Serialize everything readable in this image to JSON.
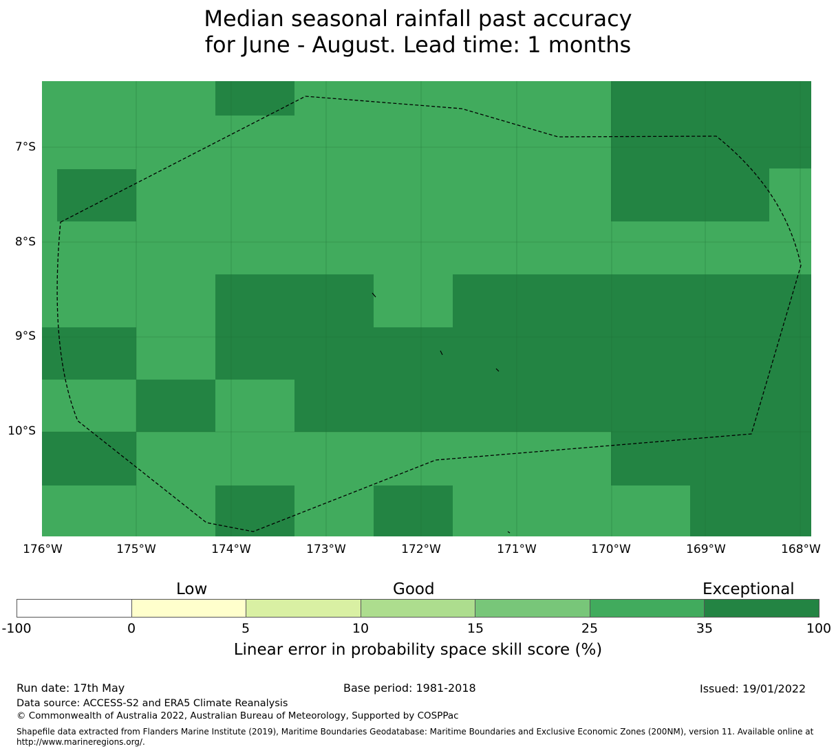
{
  "title": {
    "line1": "Median seasonal rainfall past accuracy",
    "line2": "for June - August. Lead time: 1 months"
  },
  "map": {
    "lat_labels": [
      "7°S",
      "8°S",
      "9°S",
      "10°S"
    ],
    "lon_labels": [
      "176°W",
      "175°W",
      "174°W",
      "173°W",
      "172°W",
      "171°W",
      "170°W",
      "169°W",
      "168°W"
    ],
    "colors": {
      "good": "#41ab5d",
      "exceptional": "#238443",
      "boundary": "#000000"
    }
  },
  "colorbar": {
    "categories": [
      "Low",
      "Good",
      "Exceptional"
    ],
    "ticks": [
      "-100",
      "0",
      "5",
      "10",
      "15",
      "25",
      "35",
      "100"
    ],
    "colors": [
      "#ffffff",
      "#ffffcc",
      "#d9f0a3",
      "#addd8e",
      "#78c679",
      "#41ab5d",
      "#238443"
    ],
    "label": "Linear error in probability space skill score (%)"
  },
  "footer": {
    "run_date": "Run date: 17th May",
    "base_period": "Base period: 1981-2018",
    "issued": "Issued: 19/01/2022",
    "data_source": "Data source: ACCESS-S2 and ERA5 Climate Reanalysis",
    "copyright": "© Commonwealth of Australia 2022, Australian Bureau of Meteorology, Supported by COSPPac",
    "shapefile": "Shapefile data extracted from Flanders Marine Institute (2019), Maritime Boundaries Geodatabase: Maritime Boundaries and Exclusive Economic Zones (200NM), version 11. Available online at http://www.marineregions.org/."
  }
}
